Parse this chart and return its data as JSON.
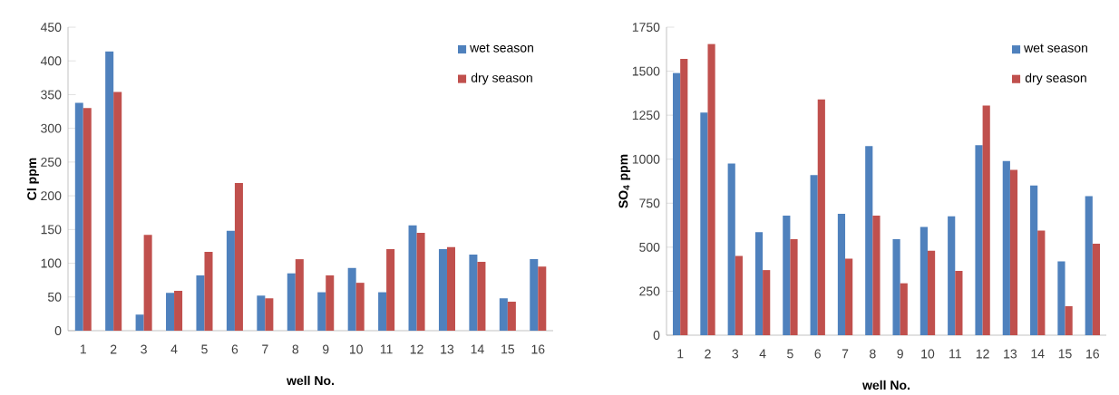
{
  "chart_data": [
    {
      "type": "bar",
      "ylabel": "Cl ppm",
      "xlabel": "well No.",
      "categories": [
        "1",
        "2",
        "3",
        "4",
        "5",
        "6",
        "7",
        "8",
        "9",
        "10",
        "11",
        "12",
        "13",
        "14",
        "15",
        "16"
      ],
      "series": [
        {
          "name": "wet season",
          "color": "#4f81bd",
          "values": [
            338,
            414,
            24,
            56,
            82,
            148,
            52,
            85,
            57,
            93,
            57,
            156,
            121,
            113,
            48,
            106
          ]
        },
        {
          "name": "dry season",
          "color": "#c0504d",
          "values": [
            330,
            354,
            142,
            59,
            117,
            219,
            48,
            106,
            82,
            71,
            121,
            145,
            124,
            102,
            43,
            95
          ]
        }
      ],
      "ylim": [
        0,
        450
      ],
      "yticks": [
        0,
        50,
        100,
        150,
        200,
        250,
        300,
        350,
        400,
        450
      ],
      "legend": "top right",
      "grid": false
    },
    {
      "type": "bar",
      "ylabel": "SO$_{4}$ ppm",
      "xlabel": "well No.",
      "categories": [
        "1",
        "2",
        "3",
        "4",
        "5",
        "6",
        "7",
        "8",
        "9",
        "10",
        "11",
        "12",
        "13",
        "14",
        "15",
        "16"
      ],
      "series": [
        {
          "name": "wet season",
          "color": "#4f81bd",
          "values": [
            1490,
            1265,
            975,
            585,
            680,
            910,
            690,
            1075,
            545,
            615,
            675,
            1080,
            990,
            850,
            420,
            790
          ]
        },
        {
          "name": "dry season",
          "color": "#c0504d",
          "values": [
            1570,
            1655,
            450,
            370,
            545,
            1340,
            435,
            680,
            295,
            480,
            365,
            1305,
            940,
            595,
            165,
            520
          ]
        }
      ],
      "ylim": [
        0,
        1750
      ],
      "yticks": [
        0,
        250,
        500,
        750,
        1000,
        1250,
        1500,
        1750
      ],
      "legend": "top right",
      "grid": false
    }
  ]
}
